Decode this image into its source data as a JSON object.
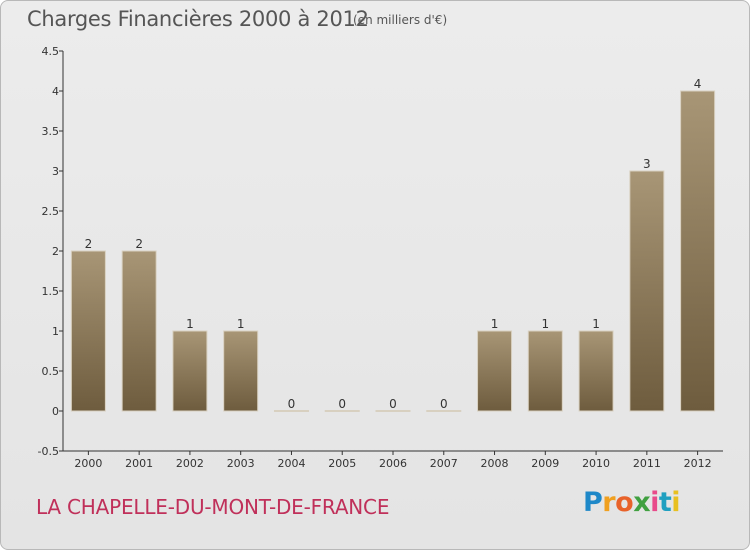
{
  "header": {
    "title": "Charges Financières 2000 à 2012",
    "subtitle": "(en milliers d'€)"
  },
  "footer": {
    "commune": "LA CHAPELLE-DU-MONT-DE-FRANCE",
    "logo_letters": [
      "P",
      "r",
      "o",
      "x",
      "i",
      "t",
      "i"
    ]
  },
  "colors": {
    "bar_top": "#a89676",
    "bar_bottom": "#6e5c3e",
    "commune": "#c0305a",
    "logo": [
      "#1e88c8",
      "#f0a020",
      "#e8622a",
      "#40a040",
      "#e84a8a",
      "#20a0c0",
      "#e8c020"
    ]
  },
  "chart_data": {
    "type": "bar",
    "title": "Charges Financières 2000 à 2012",
    "subtitle": "(en milliers d'€)",
    "categories": [
      "2000",
      "2001",
      "2002",
      "2003",
      "2004",
      "2005",
      "2006",
      "2007",
      "2008",
      "2009",
      "2010",
      "2011",
      "2012"
    ],
    "values": [
      2,
      2,
      1,
      1,
      0,
      0,
      0,
      0,
      1,
      1,
      1,
      3,
      4
    ],
    "data_labels": [
      "2",
      "2",
      "1",
      "1",
      "0",
      "0",
      "0",
      "0",
      "1",
      "1",
      "1",
      "3",
      "4"
    ],
    "ylim": [
      -0.5,
      4.5
    ],
    "yticks": [
      -0.5,
      0,
      0.5,
      1,
      1.5,
      2,
      2.5,
      3,
      3.5,
      4,
      4.5
    ],
    "ytick_labels": [
      "-0.5",
      "0",
      "0.5",
      "1",
      "1.5",
      "2",
      "2.5",
      "3",
      "3.5",
      "4",
      "4.5"
    ],
    "grid": false,
    "legend": "none"
  }
}
